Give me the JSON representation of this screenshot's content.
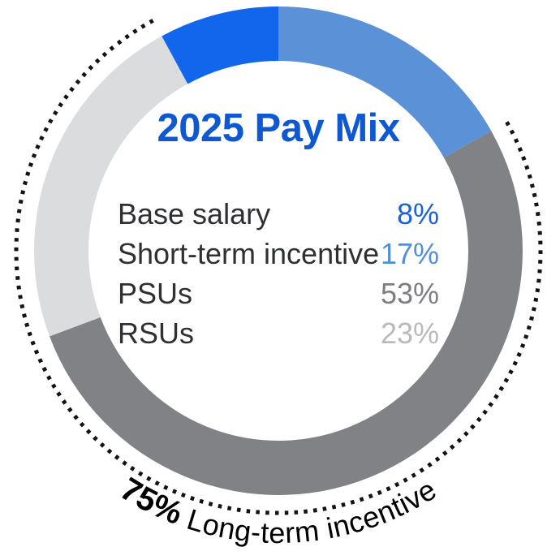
{
  "chart_data": {
    "type": "pie",
    "variant": "donut",
    "title": "2025 Pay Mix",
    "title_color": "#0E59D2",
    "background_color": "#FFFFFF",
    "segments": [
      {
        "label": "Base salary",
        "value": 8,
        "display": "8%",
        "slice_color": "#1166EC",
        "value_color": "#1A63DA"
      },
      {
        "label": "Short-term incentive",
        "value": 17,
        "display": "17%",
        "slice_color": "#5B91D6",
        "value_color": "#538FD8"
      },
      {
        "label": "PSUs",
        "value": 53,
        "display": "53%",
        "slice_color": "#808286",
        "value_color": "#7C7E83"
      },
      {
        "label": "RSUs",
        "value": 23,
        "display": "23%",
        "slice_color": "#DBDCDE",
        "value_color": "#B9BABC"
      }
    ],
    "clockwise_order_from_top": [
      1,
      2,
      3,
      0
    ],
    "annotation": {
      "bold": "75%",
      "rest": " Long-term incentive",
      "covers": [
        "PSUs",
        "RSUs"
      ],
      "color": "#1F1F1F"
    },
    "dotted_arc": {
      "color": "#131313",
      "covers": [
        "PSUs",
        "RSUs"
      ]
    },
    "legend_position": "center of donut",
    "annotation_position": "curved along outside bottom of dotted arc"
  }
}
